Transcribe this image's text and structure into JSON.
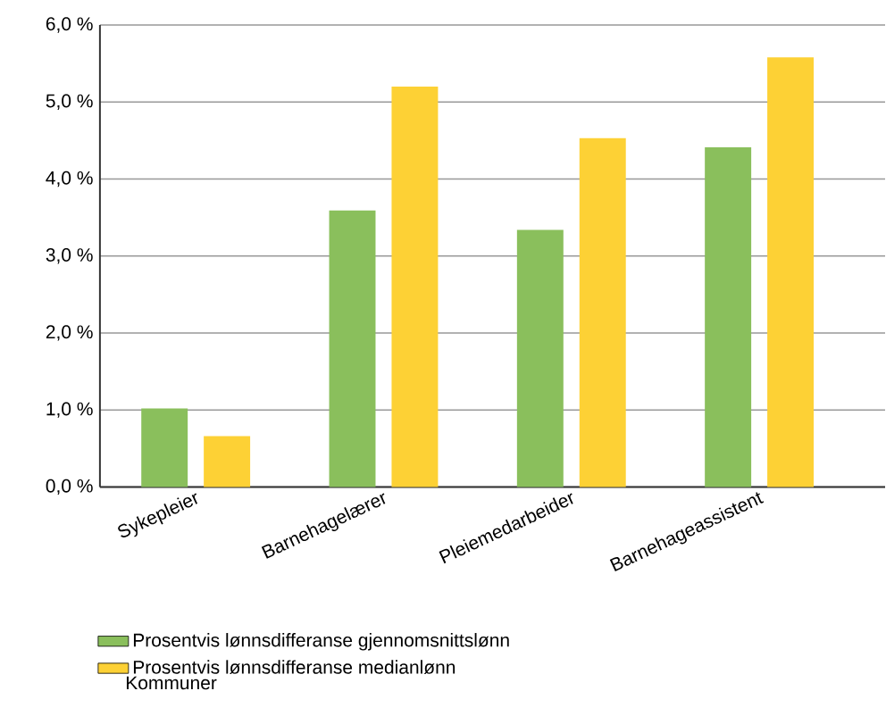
{
  "chart_data": {
    "type": "bar",
    "categories": [
      "Sykepleier",
      "Barnehagelærer",
      "Pleiemedarbeider",
      "Barnehageassistent"
    ],
    "series": [
      {
        "name": "Prosentvis lønnsdifferanse gjennomsnittslønn",
        "color": "#8abf5c",
        "values": [
          1.02,
          3.59,
          3.34,
          4.41
        ]
      },
      {
        "name": "Prosentvis lønnsdifferanse medianlønn",
        "color": "#fdd135",
        "values": [
          0.66,
          5.2,
          4.53,
          5.58
        ]
      }
    ],
    "ylim": [
      0,
      6
    ],
    "yticks": [
      {
        "value": 0,
        "label": "0,0 %"
      },
      {
        "value": 1,
        "label": "1,0 %"
      },
      {
        "value": 2,
        "label": "2,0 %"
      },
      {
        "value": 3,
        "label": "3,0 %"
      },
      {
        "value": 4,
        "label": "4,0 %"
      },
      {
        "value": 5,
        "label": "5,0 %"
      },
      {
        "value": 6,
        "label": "6,0 %"
      }
    ],
    "grid": "y",
    "legend": "bottom",
    "annotations": [
      "Kommuner"
    ]
  }
}
